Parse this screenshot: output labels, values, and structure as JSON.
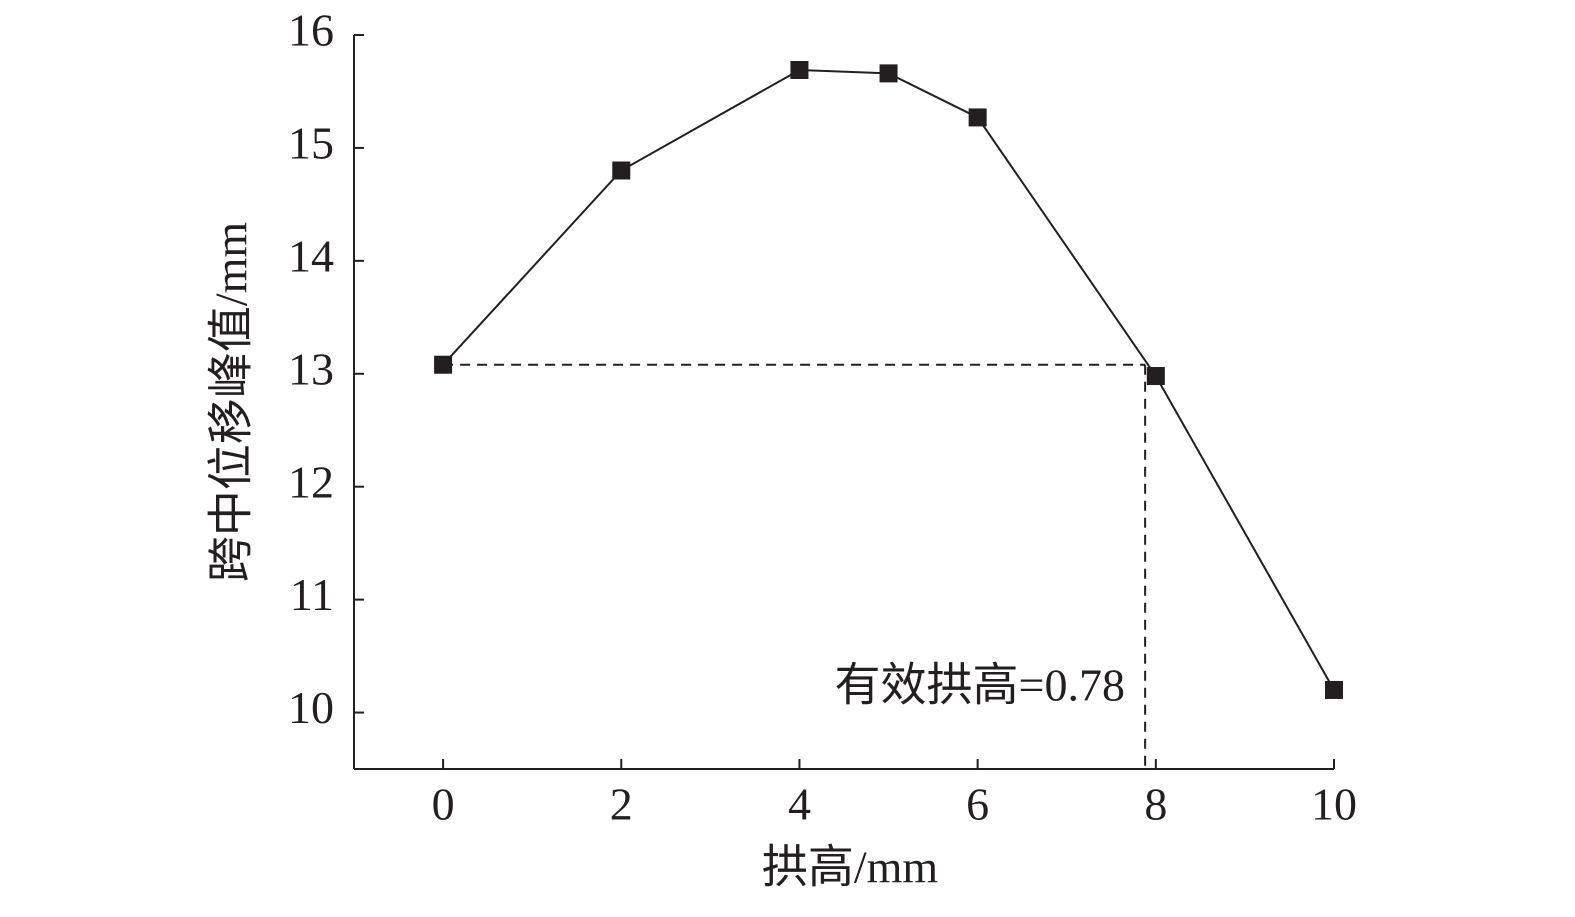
{
  "chart_data": {
    "type": "line",
    "x_label": "拱高/mm",
    "y_label": "跨中位移峰值/mm",
    "annotation": "有效拱高=0.78",
    "x": [
      0,
      2,
      4,
      5,
      6,
      8,
      10
    ],
    "series": [
      {
        "name": "跨中位移峰值",
        "color": "#231f20",
        "values": [
          13.08,
          14.8,
          15.69,
          15.66,
          15.27,
          12.98,
          10.2
        ]
      }
    ],
    "reference_point": {
      "x": 7.88,
      "y": 13.08
    },
    "xlim": [
      -1,
      10
    ],
    "xticks": [
      0,
      2,
      4,
      6,
      8,
      10
    ],
    "ylim": [
      9.5,
      16
    ],
    "yticks": [
      10,
      11,
      12,
      13,
      14,
      15,
      16
    ],
    "grid": false
  }
}
